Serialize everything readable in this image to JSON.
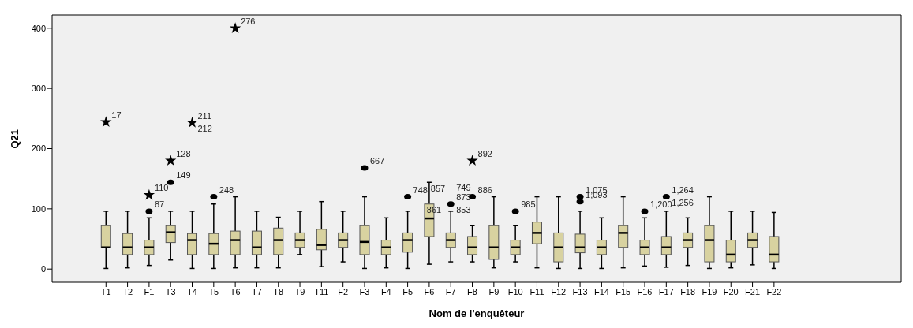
{
  "chart_data": {
    "type": "box",
    "xlabel": "Nom de l'enquêteur",
    "ylabel": "Q21",
    "categories": [
      "T1",
      "T2",
      "F1",
      "T3",
      "T4",
      "T5",
      "T6",
      "T7",
      "T8",
      "T9",
      "T11",
      "F2",
      "F3",
      "F4",
      "F5",
      "F6",
      "F7",
      "F8",
      "F9",
      "F10",
      "F11",
      "F12",
      "F13",
      "F14",
      "F15",
      "F16",
      "F17",
      "F18",
      "F19",
      "F20",
      "F21",
      "F22"
    ],
    "ylim": [
      -22,
      422
    ],
    "yticks": [
      0,
      100,
      200,
      300,
      400
    ],
    "grid": false,
    "series": [
      {
        "color": "#d8d2a0",
        "boxes": [
          {
            "low": 1,
            "q1": 36,
            "median": 36,
            "q3": 72,
            "high": 96
          },
          {
            "low": 2,
            "q1": 24,
            "median": 36,
            "q3": 59,
            "high": 96
          },
          {
            "low": 6,
            "q1": 24,
            "median": 36,
            "q3": 48,
            "high": 85
          },
          {
            "low": 15,
            "q1": 44,
            "median": 61,
            "q3": 72,
            "high": 96
          },
          {
            "low": 1,
            "q1": 24,
            "median": 48,
            "q3": 59,
            "high": 96
          },
          {
            "low": 1,
            "q1": 24,
            "median": 42,
            "q3": 59,
            "high": 108
          },
          {
            "low": 2,
            "q1": 24,
            "median": 48,
            "q3": 63,
            "high": 120
          },
          {
            "low": 2,
            "q1": 24,
            "median": 36,
            "q3": 63,
            "high": 96
          },
          {
            "low": 2,
            "q1": 24,
            "median": 48,
            "q3": 68,
            "high": 86
          },
          {
            "low": 24,
            "q1": 36,
            "median": 48,
            "q3": 60,
            "high": 96
          },
          {
            "low": 4,
            "q1": 32,
            "median": 40,
            "q3": 66,
            "high": 112
          },
          {
            "low": 12,
            "q1": 36,
            "median": 48,
            "q3": 60,
            "high": 96
          },
          {
            "low": 1,
            "q1": 24,
            "median": 45,
            "q3": 72,
            "high": 120
          },
          {
            "low": 2,
            "q1": 24,
            "median": 36,
            "q3": 48,
            "high": 85
          },
          {
            "low": 1,
            "q1": 28,
            "median": 48,
            "q3": 60,
            "high": 96
          },
          {
            "low": 8,
            "q1": 54,
            "median": 84,
            "q3": 108,
            "high": 144
          },
          {
            "low": 12,
            "q1": 36,
            "median": 48,
            "q3": 60,
            "high": 96
          },
          {
            "low": 12,
            "q1": 24,
            "median": 36,
            "q3": 54,
            "high": 72
          },
          {
            "low": 2,
            "q1": 16,
            "median": 36,
            "q3": 72,
            "high": 120
          },
          {
            "low": 12,
            "q1": 24,
            "median": 36,
            "q3": 48,
            "high": 72
          },
          {
            "low": 2,
            "q1": 42,
            "median": 60,
            "q3": 78,
            "high": 120
          },
          {
            "low": 1,
            "q1": 12,
            "median": 36,
            "q3": 60,
            "high": 120
          },
          {
            "low": 1,
            "q1": 27,
            "median": 36,
            "q3": 58,
            "high": 96
          },
          {
            "low": 1,
            "q1": 24,
            "median": 36,
            "q3": 48,
            "high": 85
          },
          {
            "low": 2,
            "q1": 36,
            "median": 60,
            "q3": 72,
            "high": 120
          },
          {
            "low": 5,
            "q1": 24,
            "median": 36,
            "q3": 48,
            "high": 85
          },
          {
            "low": 3,
            "q1": 24,
            "median": 36,
            "q3": 54,
            "high": 96
          },
          {
            "low": 6,
            "q1": 36,
            "median": 48,
            "q3": 60,
            "high": 85
          },
          {
            "low": 1,
            "q1": 12,
            "median": 48,
            "q3": 72,
            "high": 120
          },
          {
            "low": 2,
            "q1": 12,
            "median": 24,
            "q3": 48,
            "high": 96
          },
          {
            "low": 7,
            "q1": 36,
            "median": 48,
            "q3": 60,
            "high": 96
          },
          {
            "low": 1,
            "q1": 12,
            "median": 24,
            "q3": 54,
            "high": 94
          }
        ]
      },
      {
        "type": "scatter",
        "marker": "circle",
        "color": "#000000",
        "x": [
          "F1",
          "T3",
          "T5",
          "F3",
          "F5",
          "F7",
          "F8",
          "F10",
          "F13",
          "F13",
          "F16",
          "F17"
        ],
        "values": [
          96,
          144,
          120,
          168,
          120,
          108,
          120,
          96,
          120,
          112,
          96,
          120
        ]
      },
      {
        "type": "scatter",
        "marker": "star",
        "color": "#000000",
        "x": [
          "T1",
          "F1",
          "T3",
          "T4",
          "T6",
          "F8"
        ],
        "values": [
          244,
          123,
          180,
          243,
          400,
          180
        ]
      }
    ],
    "annotations": [
      {
        "text": "17",
        "x": "T1",
        "y": 244
      },
      {
        "text": "87",
        "x": "F1",
        "y": 96
      },
      {
        "text": "110",
        "x": "F1",
        "y": 123
      },
      {
        "text": "149",
        "x": "T3",
        "y": 144
      },
      {
        "text": "128",
        "x": "T3",
        "y": 180
      },
      {
        "text": "211",
        "x": "T4",
        "y": 243
      },
      {
        "text": "212",
        "x": "T4",
        "y": 243
      },
      {
        "text": "248",
        "x": "T5",
        "y": 120
      },
      {
        "text": "276",
        "x": "T6",
        "y": 400
      },
      {
        "text": "667",
        "x": "F3",
        "y": 168
      },
      {
        "text": "748",
        "x": "F5",
        "y": 120
      },
      {
        "text": "873",
        "x": "F7",
        "y": 108
      },
      {
        "text": "853",
        "x": "F7",
        "y": 108
      },
      {
        "text": "857",
        "x": "F7",
        "y": 108
      },
      {
        "text": "861",
        "x": "F7",
        "y": 108
      },
      {
        "text": "749",
        "x": "F7",
        "y": 108
      },
      {
        "text": "886",
        "x": "F8",
        "y": 120
      },
      {
        "text": "892",
        "x": "F8",
        "y": 180
      },
      {
        "text": "985",
        "x": "F10",
        "y": 96
      },
      {
        "text": "1,075",
        "x": "F13",
        "y": 120
      },
      {
        "text": "1,093",
        "x": "F13",
        "y": 112
      },
      {
        "text": "1,200",
        "x": "F16",
        "y": 96
      },
      {
        "text": "1,264",
        "x": "F17",
        "y": 120
      },
      {
        "text": "1,256",
        "x": "F17",
        "y": 120
      }
    ]
  }
}
